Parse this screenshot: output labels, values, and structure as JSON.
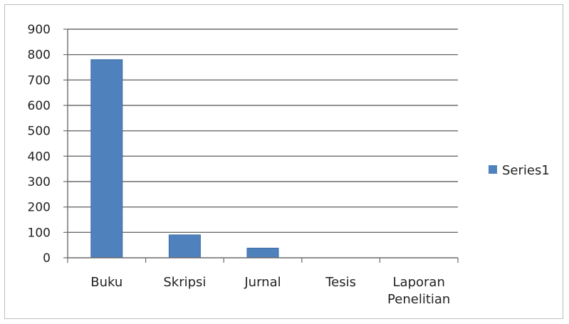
{
  "chart_data": {
    "type": "bar",
    "title": "",
    "xlabel": "",
    "ylabel": "",
    "categories": [
      "Buku",
      "Skripsi",
      "Jurnal",
      "Tesis",
      "Laporan Penelitian"
    ],
    "category_label_lines": [
      [
        "Buku"
      ],
      [
        "Skripsi"
      ],
      [
        "Jurnal"
      ],
      [
        "Tesis"
      ],
      [
        "Laporan",
        "Penelitian"
      ]
    ],
    "series": [
      {
        "name": "Series1",
        "values": [
          780,
          90,
          38,
          0,
          0
        ],
        "color": "#4f81bd"
      }
    ],
    "ylim": [
      0,
      900
    ],
    "yticks": [
      0,
      100,
      200,
      300,
      400,
      500,
      600,
      700,
      800,
      900
    ],
    "ytick_labels": [
      "0",
      "100",
      "200",
      "300",
      "400",
      "500",
      "600",
      "700",
      "800",
      "900"
    ],
    "grid": true,
    "legend": {
      "position": "right",
      "entries": [
        "Series1"
      ]
    }
  }
}
